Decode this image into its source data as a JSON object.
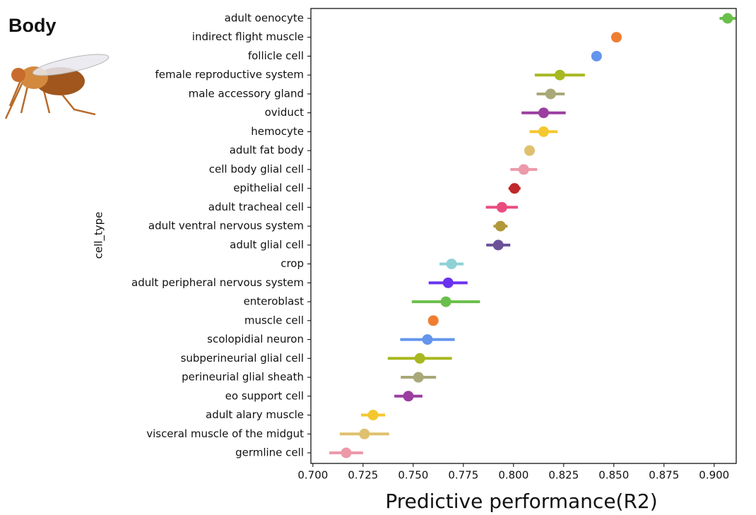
{
  "chart_data": {
    "type": "dot",
    "title": "Body",
    "xlabel": "Predictive performance(R2)",
    "ylabel": "cell_type",
    "categories": [
      "adult oenocyte",
      "indirect flight muscle",
      "follicle cell",
      "female reproductive system",
      "male accessory gland",
      "oviduct",
      "hemocyte",
      "adult fat body",
      "cell body glial cell",
      "epithelial cell",
      "adult tracheal cell",
      "adult ventral nervous system",
      "adult glial cell",
      "crop",
      "adult peripheral nervous system",
      "enteroblast",
      "muscle cell",
      "scolopidial neuron",
      "subperineurial glial cell",
      "perineurial glial sheath",
      "eo support cell",
      "adult alary muscle",
      "visceral muscle of the midgut",
      "germline cell"
    ],
    "values": [
      0.9067,
      0.8513,
      0.8414,
      0.8231,
      0.8185,
      0.815,
      0.815,
      0.808,
      0.8051,
      0.8005,
      0.7942,
      0.7935,
      0.7924,
      0.7691,
      0.7674,
      0.7663,
      0.76,
      0.7571,
      0.7533,
      0.7526,
      0.7476,
      0.73,
      0.7257,
      0.7166
    ],
    "errors": [
      0.004,
      0.002,
      0.001,
      0.0125,
      0.007,
      0.011,
      0.007,
      0.001,
      0.0067,
      0.003,
      0.008,
      0.0035,
      0.006,
      0.006,
      0.0097,
      0.017,
      0.001,
      0.0136,
      0.016,
      0.0088,
      0.007,
      0.006,
      0.0123,
      0.0084
    ],
    "colors": [
      "#6abf4b",
      "#ef7d32",
      "#6495ed",
      "#a8b820",
      "#a8a878",
      "#9b3ea0",
      "#f5c72f",
      "#e0c06e",
      "#ec99aa",
      "#c0282a",
      "#e94d7f",
      "#b3983a",
      "#6b5298",
      "#8fd1d6",
      "#6a32f0",
      "#6abf4b",
      "#ef7d32",
      "#6495ed",
      "#a8b820",
      "#a8a878",
      "#9b3ea0",
      "#f5c72f",
      "#e0c06e",
      "#ec99aa"
    ],
    "xlim": [
      0.699,
      0.911
    ],
    "xticks": [
      {
        "value": 0.7,
        "label": "0.700"
      },
      {
        "value": 0.725,
        "label": "0.725"
      },
      {
        "value": 0.75,
        "label": "0.750"
      },
      {
        "value": 0.775,
        "label": "0.775"
      },
      {
        "value": 0.8,
        "label": "0.800"
      },
      {
        "value": 0.825,
        "label": "0.825"
      },
      {
        "value": 0.85,
        "label": "0.850"
      },
      {
        "value": 0.875,
        "label": "0.875"
      },
      {
        "value": 0.9,
        "label": "0.900"
      }
    ]
  }
}
